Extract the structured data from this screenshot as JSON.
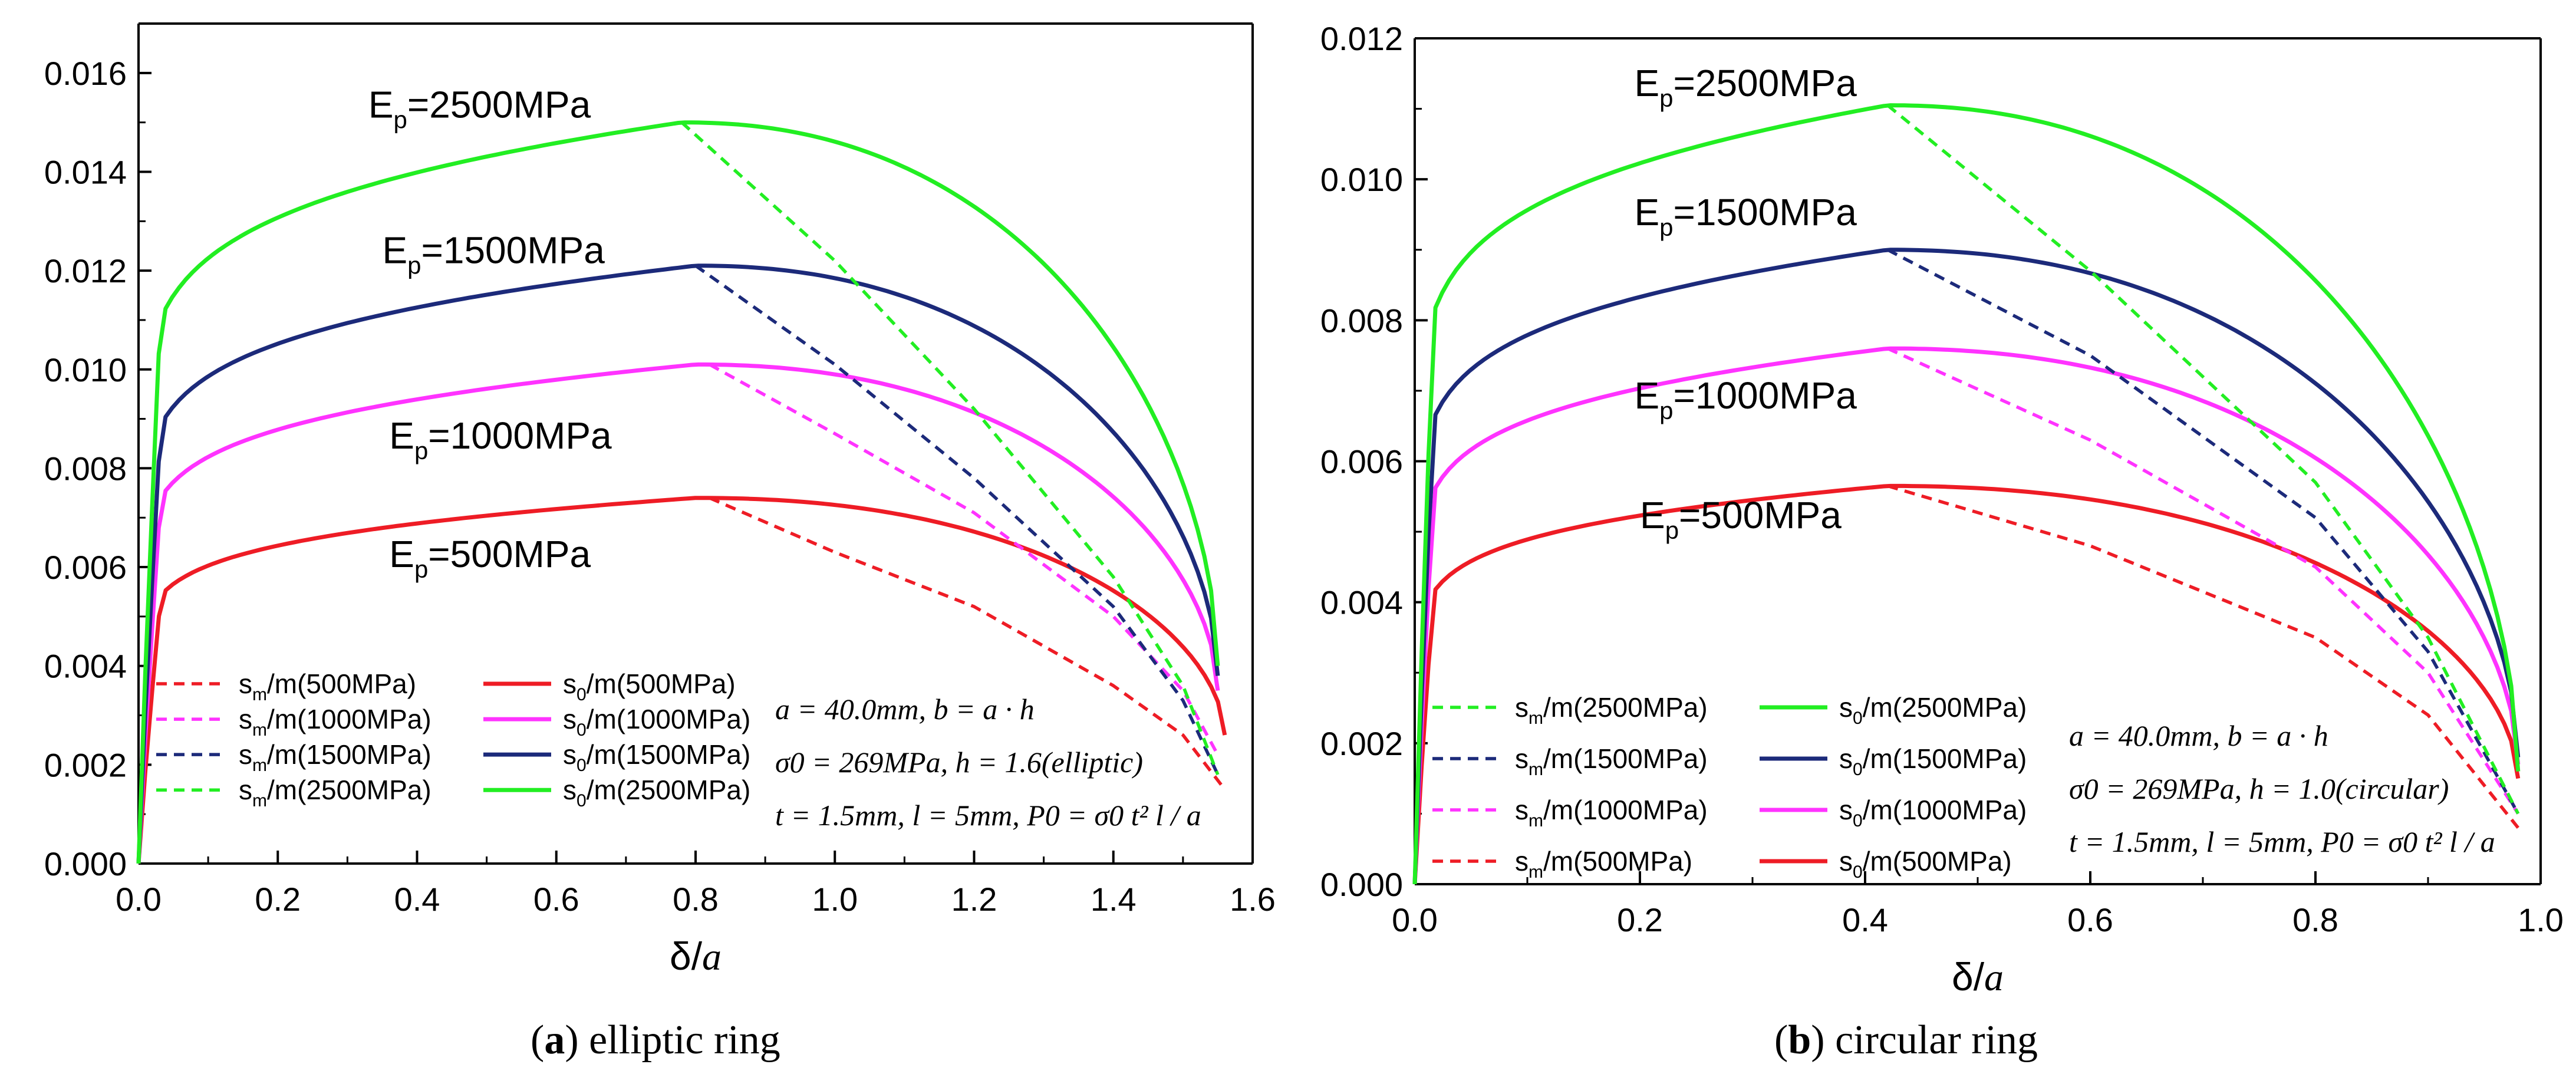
{
  "figure": {
    "captions": [
      {
        "letter": "a",
        "text": "elliptic ring"
      },
      {
        "letter": "b",
        "text": "circular ring"
      }
    ]
  },
  "colors": {
    "500": "#ee1c25",
    "1000": "#ff33ff",
    "1500": "#1c2a7a",
    "2500": "#22ee22"
  },
  "chart_data": [
    {
      "type": "line",
      "title": "elliptic ring",
      "xlabel": "δ/a",
      "ylabel": "",
      "xlim": [
        0,
        1.6
      ],
      "ylim": [
        0,
        0.017
      ],
      "xticks": [
        0,
        0.2,
        0.4,
        0.6,
        0.8,
        1.0,
        1.2,
        1.4,
        1.6
      ],
      "xtick_labels": [
        "0.0",
        "0.2",
        "0.4",
        "0.6",
        "0.8",
        "1.0",
        "1.2",
        "1.4",
        "1.6"
      ],
      "yticks": [
        0,
        0.002,
        0.004,
        0.006,
        0.008,
        0.01,
        0.012,
        0.014,
        0.016
      ],
      "ytick_labels": [
        "0.000",
        "0.002",
        "0.004",
        "0.006",
        "0.008",
        "0.010",
        "0.012",
        "0.014",
        "0.016"
      ],
      "x_end": 1.55,
      "series": [
        {
          "name": "s0/m(500MPa)",
          "ep": "500",
          "style": "solid",
          "peak_x": 0.8,
          "peak_y": 0.0074,
          "x_end": 1.56,
          "end_y": 0.0026
        },
        {
          "name": "s0/m(1000MPa)",
          "ep": "1000",
          "style": "solid",
          "peak_x": 0.8,
          "peak_y": 0.0101,
          "x_end": 1.55,
          "end_y": 0.0035
        },
        {
          "name": "s0/m(1500MPa)",
          "ep": "1500",
          "style": "solid",
          "peak_x": 0.8,
          "peak_y": 0.0121,
          "x_end": 1.55,
          "end_y": 0.0038
        },
        {
          "name": "s0/m(2500MPa)",
          "ep": "2500",
          "style": "solid",
          "peak_x": 0.78,
          "peak_y": 0.015,
          "x_end": 1.55,
          "end_y": 0.004
        },
        {
          "name": "sm/m(500MPa)",
          "ep": "500",
          "style": "dashed",
          "x": [
            0.82,
            1.0,
            1.2,
            1.4,
            1.5,
            1.56
          ],
          "y": [
            0.0074,
            0.0063,
            0.0052,
            0.0036,
            0.0026,
            0.0015
          ]
        },
        {
          "name": "sm/m(1000MPa)",
          "ep": "1000",
          "style": "dashed",
          "x": [
            0.82,
            1.0,
            1.2,
            1.4,
            1.5,
            1.55
          ],
          "y": [
            0.0101,
            0.0087,
            0.0071,
            0.005,
            0.0035,
            0.0022
          ]
        },
        {
          "name": "sm/m(1500MPa)",
          "ep": "1500",
          "style": "dashed",
          "x": [
            0.8,
            1.0,
            1.2,
            1.4,
            1.5,
            1.55
          ],
          "y": [
            0.0121,
            0.0101,
            0.0078,
            0.0052,
            0.0033,
            0.0018
          ]
        },
        {
          "name": "sm/m(2500MPa)",
          "ep": "2500",
          "style": "dashed",
          "x": [
            0.78,
            1.0,
            1.2,
            1.4,
            1.5,
            1.55
          ],
          "y": [
            0.015,
            0.0122,
            0.0092,
            0.0058,
            0.0036,
            0.0018
          ]
        }
      ],
      "curve_labels": [
        {
          "sub": "p",
          "text": "=2500MPa",
          "x": 0.33,
          "y": 0.0151
        },
        {
          "sub": "p",
          "text": "=1500MPa",
          "x": 0.35,
          "y": 0.01215
        },
        {
          "sub": "p",
          "text": "=1000MPa",
          "x": 0.36,
          "y": 0.0084
        },
        {
          "sub": "p",
          "text": "=500MPa",
          "x": 0.36,
          "y": 0.006
        }
      ],
      "legend": {
        "placement": "bottom-left",
        "rows": [
          {
            "dashed": {
              "main": "s",
              "sub": "m",
              "rest": "/m(500MPa)"
            },
            "solid": {
              "main": "s",
              "sub": "0",
              "rest": "/m(500MPa)"
            },
            "ep": "500"
          },
          {
            "dashed": {
              "main": "s",
              "sub": "m",
              "rest": "/m(1000MPa)"
            },
            "solid": {
              "main": "s",
              "sub": "0",
              "rest": "/m(1000MPa)"
            },
            "ep": "1000"
          },
          {
            "dashed": {
              "main": "s",
              "sub": "m",
              "rest": "/m(1500MPa)"
            },
            "solid": {
              "main": "s",
              "sub": "0",
              "rest": "/m(1500MPa)"
            },
            "ep": "1500"
          },
          {
            "dashed": {
              "main": "s",
              "sub": "m",
              "rest": "/m(2500MPa)"
            },
            "solid": {
              "main": "s",
              "sub": "0",
              "rest": "/m(2500MPa)"
            },
            "ep": "2500"
          }
        ]
      },
      "annotations": [
        "a = 40.0mm, b = a · h",
        "σ0 = 269MPa, h = 1.6(elliptic)",
        "t = 1.5mm, l = 5mm, P0 = σ0 t² l / a"
      ]
    },
    {
      "type": "line",
      "title": "circular ring",
      "xlabel": "δ/a",
      "ylabel": "",
      "xlim": [
        0,
        1.0
      ],
      "ylim": [
        0,
        0.012
      ],
      "xticks": [
        0,
        0.2,
        0.4,
        0.6,
        0.8,
        1.0
      ],
      "xtick_labels": [
        "0.0",
        "0.2",
        "0.4",
        "0.6",
        "0.8",
        "1.0"
      ],
      "yticks": [
        0,
        0.002,
        0.004,
        0.006,
        0.008,
        0.01,
        0.012
      ],
      "ytick_labels": [
        "0.000",
        "0.002",
        "0.004",
        "0.006",
        "0.008",
        "0.010",
        "0.012"
      ],
      "series": [
        {
          "name": "s0/m(500MPa)",
          "ep": "500",
          "style": "solid",
          "peak_x": 0.42,
          "peak_y": 0.00565,
          "x_end": 0.98,
          "end_y": 0.0015
        },
        {
          "name": "s0/m(1000MPa)",
          "ep": "1000",
          "style": "solid",
          "peak_x": 0.42,
          "peak_y": 0.0076,
          "x_end": 0.98,
          "end_y": 0.0017
        },
        {
          "name": "s0/m(1500MPa)",
          "ep": "1500",
          "style": "solid",
          "peak_x": 0.42,
          "peak_y": 0.009,
          "x_end": 0.98,
          "end_y": 0.0018
        },
        {
          "name": "s0/m(2500MPa)",
          "ep": "2500",
          "style": "solid",
          "peak_x": 0.42,
          "peak_y": 0.01105,
          "x_end": 0.98,
          "end_y": 0.0016
        },
        {
          "name": "sm/m(500MPa)",
          "ep": "500",
          "style": "dashed",
          "x": [
            0.42,
            0.6,
            0.8,
            0.9,
            0.98
          ],
          "y": [
            0.00565,
            0.0048,
            0.0035,
            0.0024,
            0.0008
          ]
        },
        {
          "name": "sm/m(1000MPa)",
          "ep": "1000",
          "style": "dashed",
          "x": [
            0.42,
            0.6,
            0.8,
            0.9,
            0.98
          ],
          "y": [
            0.0076,
            0.0063,
            0.0045,
            0.003,
            0.001
          ]
        },
        {
          "name": "sm/m(1500MPa)",
          "ep": "1500",
          "style": "dashed",
          "x": [
            0.42,
            0.6,
            0.8,
            0.9,
            0.98
          ],
          "y": [
            0.009,
            0.0075,
            0.0052,
            0.0033,
            0.001
          ]
        },
        {
          "name": "sm/m(2500MPa)",
          "ep": "2500",
          "style": "dashed",
          "x": [
            0.42,
            0.6,
            0.8,
            0.9,
            0.98
          ],
          "y": [
            0.01105,
            0.0087,
            0.0057,
            0.0035,
            0.001
          ]
        }
      ],
      "curve_labels": [
        {
          "sub": "p",
          "text": "=2500MPa",
          "x": 0.195,
          "y": 0.01118
        },
        {
          "sub": "p",
          "text": "=1500MPa",
          "x": 0.195,
          "y": 0.00935
        },
        {
          "sub": "p",
          "text": "=1000MPa",
          "x": 0.195,
          "y": 0.00675
        },
        {
          "sub": "p",
          "text": "=500MPa",
          "x": 0.2,
          "y": 0.00505
        }
      ],
      "legend": {
        "placement": "bottom-left",
        "rows": [
          {
            "dashed": {
              "main": "s",
              "sub": "m",
              "rest": "/m(2500MPa)"
            },
            "solid": {
              "main": "s",
              "sub": "0",
              "rest": "/m(2500MPa)"
            },
            "ep": "2500"
          },
          {
            "dashed": {
              "main": "s",
              "sub": "m",
              "rest": "/m(1500MPa)"
            },
            "solid": {
              "main": "s",
              "sub": "0",
              "rest": "/m(1500MPa)"
            },
            "ep": "1500"
          },
          {
            "dashed": {
              "main": "s",
              "sub": "m",
              "rest": "/m(1000MPa)"
            },
            "solid": {
              "main": "s",
              "sub": "0",
              "rest": "/m(1000MPa)"
            },
            "ep": "1000"
          },
          {
            "dashed": {
              "main": "s",
              "sub": "m",
              "rest": "/m(500MPa)"
            },
            "solid": {
              "main": "s",
              "sub": "0",
              "rest": "/m(500MPa)"
            },
            "ep": "500"
          }
        ]
      },
      "annotations": [
        "a = 40.0mm, b = a · h",
        "σ0 = 269MPa, h = 1.0(circular)",
        "t = 1.5mm, l = 5mm, P0 = σ0 t² l / a"
      ]
    }
  ]
}
